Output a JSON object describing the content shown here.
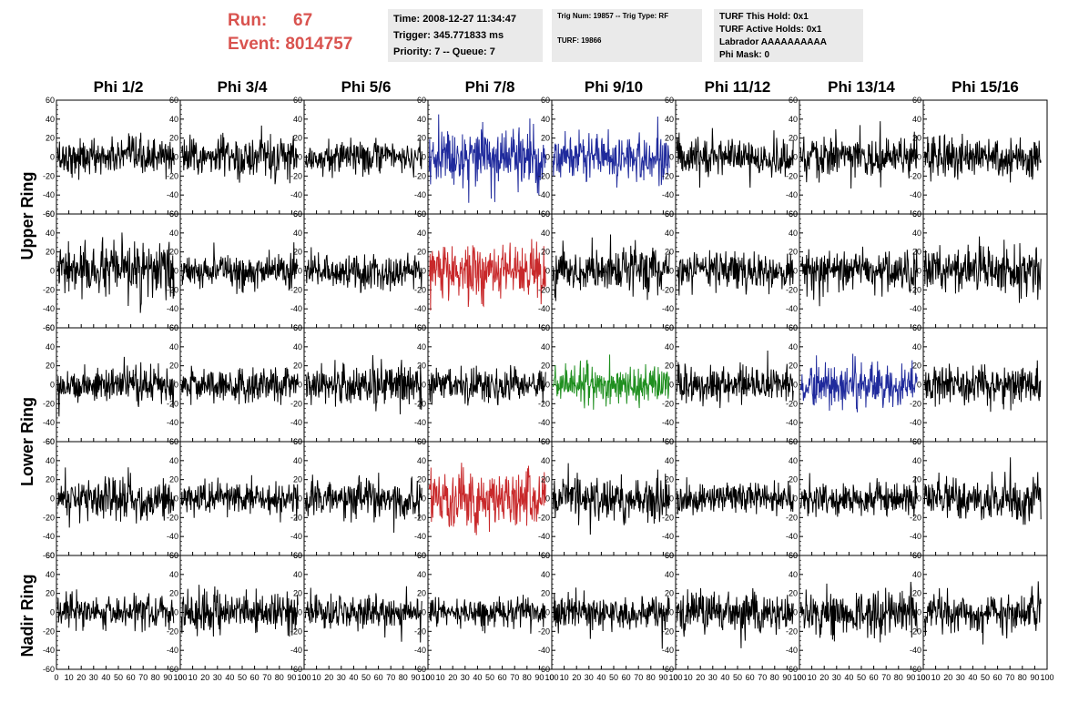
{
  "header": {
    "run_label": "Run:",
    "run_value": "67",
    "event_label": "Event:",
    "event_value": "8014757",
    "time_text": "Time: 2008-12-27 11:34:47",
    "trigger_text": "Trigger: 345.771833 ms",
    "priority_text": "Priority: 7 -- Queue: 7",
    "trig_num_text": "Trig Num: 19857 -- Trig Type: RF",
    "turf_text": "TURF: 19866",
    "turf_hold_text": "TURF This Hold: 0x1",
    "turf_active_text": "TURF Active Holds: 0x1",
    "labrador_text": "Labrador AAAAAAAAAA",
    "phi_mask_text": "Phi Mask: 0"
  },
  "colors": {
    "accent_red_text": "#d9534f",
    "trace_default": "#000000",
    "trace_blue": "#1f2a9c",
    "trace_red": "#c8282a",
    "trace_green": "#1f8f1f"
  },
  "chart_data": {
    "type": "line",
    "columns": [
      "Phi 1/2",
      "Phi 3/4",
      "Phi 5/6",
      "Phi 7/8",
      "Phi 9/10",
      "Phi 11/12",
      "Phi 13/14",
      "Phi 15/16"
    ],
    "rings": [
      {
        "label": "Upper Ring",
        "rows": 2
      },
      {
        "label": "Lower Ring",
        "rows": 2
      },
      {
        "label": "Nadir Ring",
        "rows": 1
      }
    ],
    "xlim": [
      0,
      100
    ],
    "ylim": [
      -60,
      60
    ],
    "xticks": [
      0,
      10,
      20,
      30,
      40,
      50,
      60,
      70,
      80,
      90,
      100
    ],
    "xtick_labels": [
      "0",
      "10",
      "20",
      "30",
      "40",
      "50",
      "60",
      "70",
      "80",
      "90",
      "100"
    ],
    "yticks": [
      -60,
      -40,
      -20,
      0,
      20,
      40,
      60
    ],
    "ytick_labels": [
      "-60",
      "-40",
      "-20",
      "0",
      "20",
      "40",
      "60"
    ],
    "n_samples": 260,
    "panels": [
      {
        "row": 0,
        "col": 0,
        "color": "#000000",
        "amplitude": 12
      },
      {
        "row": 0,
        "col": 1,
        "color": "#000000",
        "amplitude": 14
      },
      {
        "row": 0,
        "col": 2,
        "color": "#000000",
        "amplitude": 11
      },
      {
        "row": 0,
        "col": 3,
        "color": "#1f2a9c",
        "amplitude": 20
      },
      {
        "row": 0,
        "col": 4,
        "color": "#1f2a9c",
        "amplitude": 16
      },
      {
        "row": 0,
        "col": 5,
        "color": "#000000",
        "amplitude": 12
      },
      {
        "row": 0,
        "col": 6,
        "color": "#000000",
        "amplitude": 14
      },
      {
        "row": 0,
        "col": 7,
        "color": "#000000",
        "amplitude": 13
      },
      {
        "row": 1,
        "col": 0,
        "color": "#000000",
        "amplitude": 17
      },
      {
        "row": 1,
        "col": 1,
        "color": "#000000",
        "amplitude": 11
      },
      {
        "row": 1,
        "col": 2,
        "color": "#000000",
        "amplitude": 12
      },
      {
        "row": 1,
        "col": 3,
        "color": "#c8282a",
        "amplitude": 19
      },
      {
        "row": 1,
        "col": 4,
        "color": "#000000",
        "amplitude": 15
      },
      {
        "row": 1,
        "col": 5,
        "color": "#000000",
        "amplitude": 12
      },
      {
        "row": 1,
        "col": 6,
        "color": "#000000",
        "amplitude": 13
      },
      {
        "row": 1,
        "col": 7,
        "color": "#000000",
        "amplitude": 17
      },
      {
        "row": 2,
        "col": 0,
        "color": "#000000",
        "amplitude": 12
      },
      {
        "row": 2,
        "col": 1,
        "color": "#000000",
        "amplitude": 11
      },
      {
        "row": 2,
        "col": 2,
        "color": "#000000",
        "amplitude": 15
      },
      {
        "row": 2,
        "col": 3,
        "color": "#000000",
        "amplitude": 12
      },
      {
        "row": 2,
        "col": 4,
        "color": "#1f8f1f",
        "amplitude": 13
      },
      {
        "row": 2,
        "col": 5,
        "color": "#000000",
        "amplitude": 12
      },
      {
        "row": 2,
        "col": 6,
        "color": "#1f2a9c",
        "amplitude": 14
      },
      {
        "row": 2,
        "col": 7,
        "color": "#000000",
        "amplitude": 12
      },
      {
        "row": 3,
        "col": 0,
        "color": "#000000",
        "amplitude": 14
      },
      {
        "row": 3,
        "col": 1,
        "color": "#000000",
        "amplitude": 11
      },
      {
        "row": 3,
        "col": 2,
        "color": "#000000",
        "amplitude": 13
      },
      {
        "row": 3,
        "col": 3,
        "color": "#c8282a",
        "amplitude": 19
      },
      {
        "row": 3,
        "col": 4,
        "color": "#000000",
        "amplitude": 14
      },
      {
        "row": 3,
        "col": 5,
        "color": "#000000",
        "amplitude": 10
      },
      {
        "row": 3,
        "col": 6,
        "color": "#000000",
        "amplitude": 12
      },
      {
        "row": 3,
        "col": 7,
        "color": "#000000",
        "amplitude": 15
      },
      {
        "row": 4,
        "col": 0,
        "color": "#000000",
        "amplitude": 11
      },
      {
        "row": 4,
        "col": 1,
        "color": "#000000",
        "amplitude": 13
      },
      {
        "row": 4,
        "col": 2,
        "color": "#000000",
        "amplitude": 11
      },
      {
        "row": 4,
        "col": 3,
        "color": "#000000",
        "amplitude": 10
      },
      {
        "row": 4,
        "col": 4,
        "color": "#000000",
        "amplitude": 12
      },
      {
        "row": 4,
        "col": 5,
        "color": "#000000",
        "amplitude": 14
      },
      {
        "row": 4,
        "col": 6,
        "color": "#000000",
        "amplitude": 15
      },
      {
        "row": 4,
        "col": 7,
        "color": "#000000",
        "amplitude": 14
      }
    ]
  }
}
